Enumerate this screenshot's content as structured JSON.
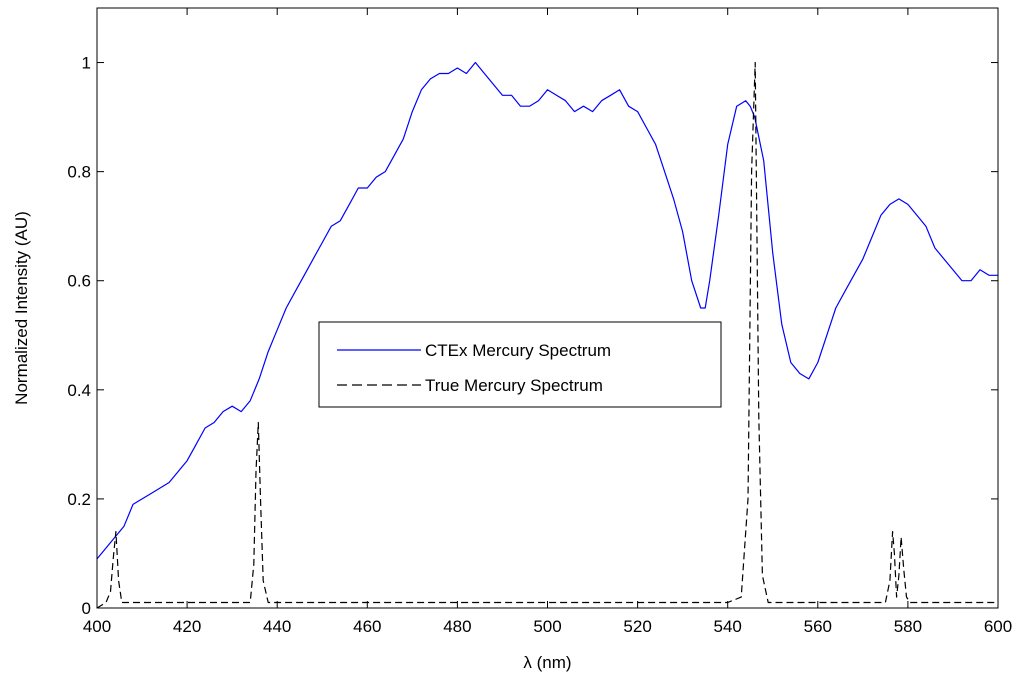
{
  "chart_data": {
    "type": "line",
    "title": "",
    "xlabel": "λ (nm)",
    "ylabel": "Normalized Intensity (AU)",
    "xlim": [
      400,
      600
    ],
    "ylim": [
      0,
      1.1
    ],
    "xticks": [
      400,
      420,
      440,
      460,
      480,
      500,
      520,
      540,
      560,
      580,
      600
    ],
    "yticks": [
      0,
      0.2,
      0.4,
      0.6,
      0.8,
      1
    ],
    "ytick_labels": [
      "0",
      "0.2",
      "0.4",
      "0.6",
      "0.8",
      "1"
    ],
    "grid": false,
    "legend_position": "center",
    "series": [
      {
        "name": "CTEx Mercury Spectrum",
        "color": "#0000ff",
        "style": "solid",
        "x": [
          400,
          402,
          404,
          406,
          408,
          410,
          412,
          414,
          416,
          418,
          420,
          422,
          424,
          426,
          428,
          430,
          432,
          434,
          436,
          438,
          440,
          442,
          444,
          446,
          448,
          450,
          452,
          454,
          456,
          458,
          460,
          462,
          464,
          466,
          468,
          470,
          472,
          474,
          476,
          478,
          480,
          482,
          484,
          486,
          488,
          490,
          492,
          494,
          496,
          498,
          500,
          502,
          504,
          506,
          508,
          510,
          512,
          514,
          516,
          518,
          520,
          522,
          524,
          526,
          528,
          530,
          532,
          534,
          535,
          536,
          538,
          540,
          542,
          544,
          545,
          546,
          548,
          550,
          552,
          554,
          556,
          558,
          560,
          562,
          564,
          566,
          568,
          570,
          572,
          574,
          576,
          578,
          580,
          582,
          584,
          586,
          588,
          590,
          592,
          594,
          596,
          598,
          600
        ],
        "y": [
          0.09,
          0.11,
          0.13,
          0.15,
          0.19,
          0.2,
          0.21,
          0.22,
          0.23,
          0.25,
          0.27,
          0.3,
          0.33,
          0.34,
          0.36,
          0.37,
          0.36,
          0.38,
          0.42,
          0.47,
          0.51,
          0.55,
          0.58,
          0.61,
          0.64,
          0.67,
          0.7,
          0.71,
          0.74,
          0.77,
          0.77,
          0.79,
          0.8,
          0.83,
          0.86,
          0.91,
          0.95,
          0.97,
          0.98,
          0.98,
          0.99,
          0.98,
          1.0,
          0.98,
          0.96,
          0.94,
          0.94,
          0.92,
          0.92,
          0.93,
          0.95,
          0.94,
          0.93,
          0.91,
          0.92,
          0.91,
          0.93,
          0.94,
          0.95,
          0.92,
          0.91,
          0.88,
          0.85,
          0.8,
          0.75,
          0.69,
          0.6,
          0.55,
          0.55,
          0.6,
          0.72,
          0.85,
          0.92,
          0.93,
          0.92,
          0.9,
          0.82,
          0.65,
          0.52,
          0.45,
          0.43,
          0.42,
          0.45,
          0.5,
          0.55,
          0.58,
          0.61,
          0.64,
          0.68,
          0.72,
          0.74,
          0.75,
          0.74,
          0.72,
          0.7,
          0.66,
          0.64,
          0.62,
          0.6,
          0.6,
          0.62,
          0.61,
          0.61
        ]
      },
      {
        "name": "True Mercury Spectrum",
        "color": "#000000",
        "style": "dashed",
        "x": [
          400,
          402,
          403,
          403.6,
          404.2,
          404.8,
          405.5,
          407,
          410,
          415,
          420,
          425,
          430,
          434,
          434.8,
          435.3,
          435.8,
          436.3,
          436.9,
          438,
          445,
          455,
          465,
          475,
          485,
          495,
          505,
          515,
          525,
          535,
          540,
          543,
          544.5,
          545.3,
          546.1,
          546.9,
          547.7,
          549,
          555,
          565,
          570,
          575,
          576,
          576.6,
          577,
          577.5,
          578,
          578.5,
          579.1,
          579.7,
          580.5,
          585,
          590,
          595,
          600
        ],
        "y": [
          0.0,
          0.01,
          0.03,
          0.09,
          0.14,
          0.05,
          0.01,
          0.01,
          0.01,
          0.01,
          0.01,
          0.01,
          0.01,
          0.01,
          0.08,
          0.25,
          0.34,
          0.2,
          0.05,
          0.01,
          0.01,
          0.01,
          0.01,
          0.01,
          0.01,
          0.01,
          0.01,
          0.01,
          0.01,
          0.01,
          0.01,
          0.02,
          0.2,
          0.8,
          1.0,
          0.35,
          0.06,
          0.01,
          0.01,
          0.01,
          0.01,
          0.01,
          0.05,
          0.14,
          0.1,
          0.02,
          0.06,
          0.13,
          0.07,
          0.02,
          0.01,
          0.01,
          0.01,
          0.01,
          0.01
        ]
      }
    ]
  }
}
